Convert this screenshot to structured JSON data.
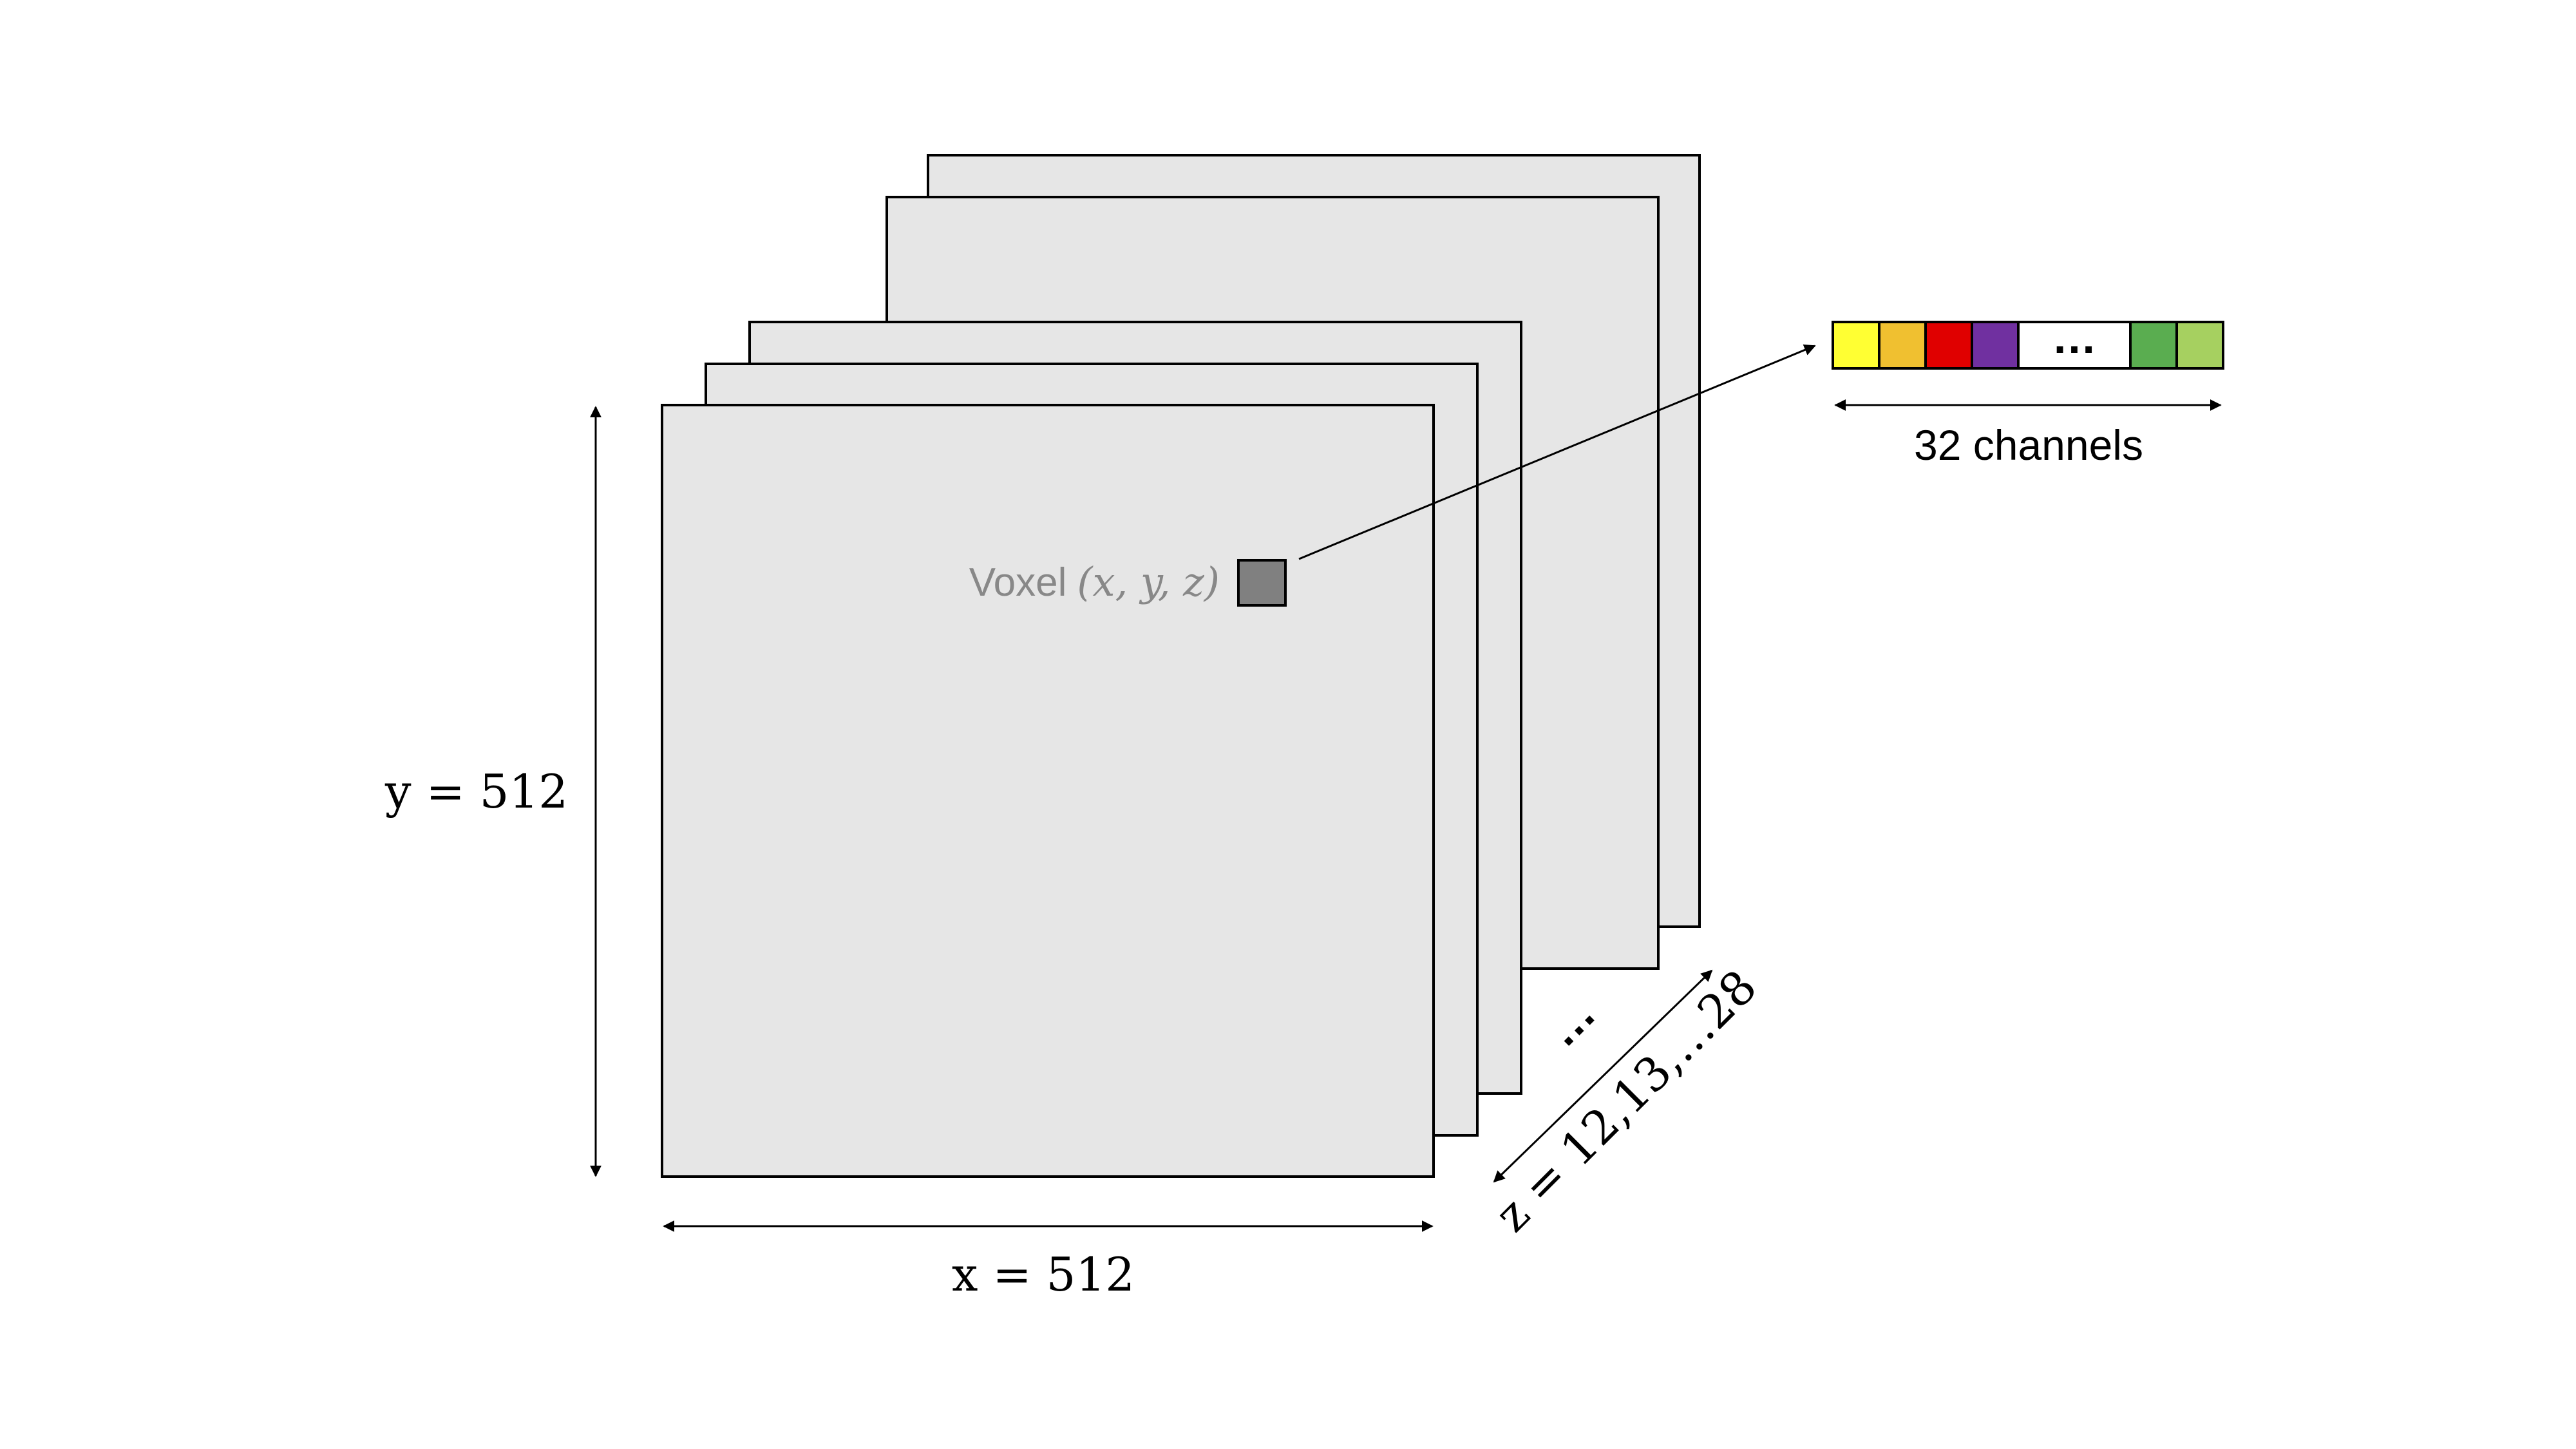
{
  "labels": {
    "voxel_word": "Voxel",
    "voxel_coords": "(x, y, z)",
    "y_dim": "y = 512",
    "x_dim": "x = 512",
    "z_dim": "z = 12,13,…28",
    "stack_ellipsis": "…",
    "channel_ellipsis": "…",
    "channels": "32 channels"
  },
  "colors": {
    "slice_fill": "#e6e6e6",
    "stroke": "#000000",
    "voxel_fill": "#808080",
    "voxel_label": "#888888",
    "channels": [
      "#ffff33",
      "#f0c030",
      "#e00000",
      "#7030a0",
      "#ffffff",
      "#5aad50",
      "#a6d060"
    ]
  }
}
